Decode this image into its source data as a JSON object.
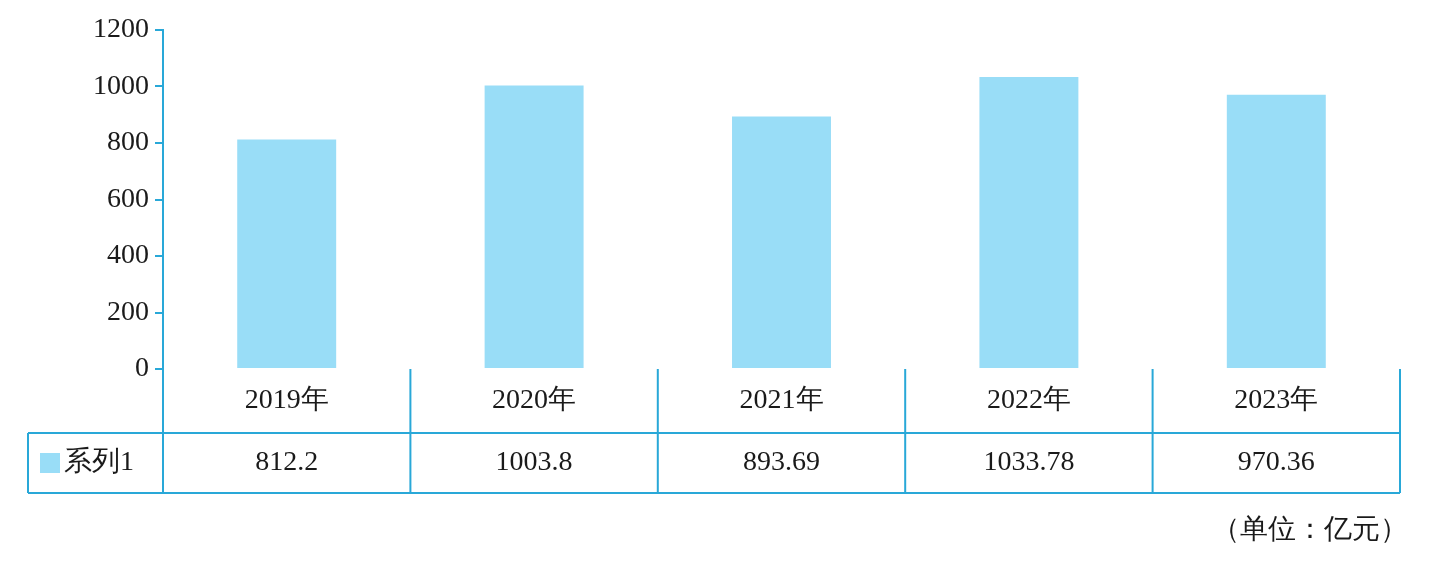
{
  "chart_data": {
    "type": "bar",
    "categories": [
      "2019年",
      "2020年",
      "2021年",
      "2022年",
      "2023年"
    ],
    "series": [
      {
        "name": "系列1",
        "color": "#99ddf7",
        "values": [
          812.2,
          1003.8,
          893.69,
          1033.78,
          970.36
        ]
      }
    ],
    "ylim": [
      0,
      1200
    ],
    "yticks": [
      0,
      200,
      400,
      600,
      800,
      1000,
      1200
    ],
    "grid": false,
    "legend": "bottom",
    "data_labels": true,
    "annotations": [
      "（单位：亿元）"
    ]
  }
}
